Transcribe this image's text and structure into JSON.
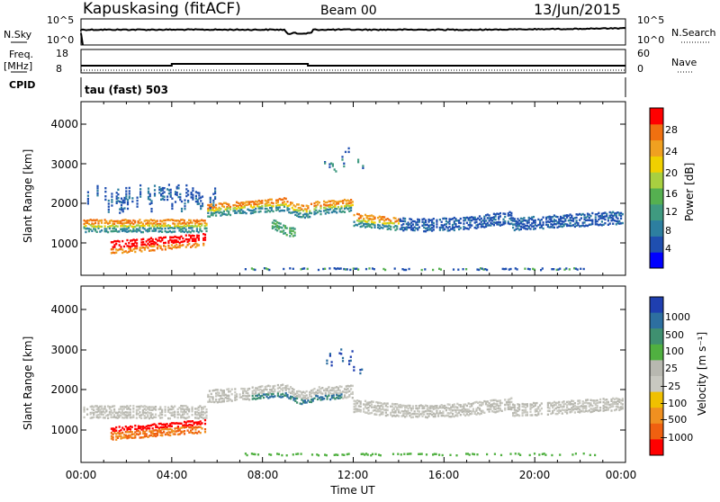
{
  "header": {
    "station": "Kapuskasing (fitACF)",
    "beam": "Beam 00",
    "date": "13/Jun/2015"
  },
  "noise_panel": {
    "left_label": "N.Sky",
    "right_label": "N.Search",
    "left_ticks": [
      "10^5",
      "10^0"
    ],
    "right_ticks": [
      "10^5",
      "10^0"
    ]
  },
  "freq_panel": {
    "left_label_1": "Freq.",
    "left_label_2": "[MHz]",
    "right_label": "Nave",
    "left_ticks": [
      "18",
      "8"
    ],
    "right_ticks": [
      "60",
      "0"
    ]
  },
  "cpid": {
    "label": "CPID",
    "text": "tau (fast) 503"
  },
  "colors": {
    "power": [
      "#0000ff",
      "#1f4fb0",
      "#2d7fa0",
      "#3f9a80",
      "#55b050",
      "#a8d040",
      "#f0d000",
      "#f0a020",
      "#f07010",
      "#ff0000"
    ],
    "velocity": [
      "#1f3fb0",
      "#2d6fa0",
      "#3f9070",
      "#50b040",
      "#b8b8b0",
      "#c8c8c0",
      "#f0c000",
      "#f09020",
      "#f06010",
      "#ff0000"
    ]
  },
  "chart_data": [
    {
      "type": "heatmap",
      "title": "Power",
      "xlabel": "Time UT",
      "ylabel": "Slant Range [km]",
      "x_ticks": [
        "00:00",
        "04:00",
        "08:00",
        "12:00",
        "16:00",
        "20:00",
        "00:00"
      ],
      "xlim": [
        "00:00",
        "24:00"
      ],
      "ylim": [
        180,
        4600
      ],
      "y_ticks": [
        1000,
        2000,
        3000,
        4000
      ],
      "colorbar": {
        "label": "Power [dB]",
        "ticks": [
          "4",
          "8",
          "12",
          "16",
          "20",
          "24",
          "28"
        ],
        "range": [
          0,
          30
        ]
      }
    },
    {
      "type": "heatmap",
      "title": "Velocity",
      "xlabel": "Time UT",
      "ylabel": "Slant Range [km]",
      "x_ticks": [
        "00:00",
        "04:00",
        "08:00",
        "12:00",
        "16:00",
        "20:00",
        "00:00"
      ],
      "xlim": [
        "00:00",
        "24:00"
      ],
      "ylim": [
        180,
        4600
      ],
      "y_ticks": [
        1000,
        2000,
        3000,
        4000
      ],
      "colorbar": {
        "label": "Velocity [m s⁻¹]",
        "ticks": [
          "1000",
          "500",
          "100",
          "25",
          "−25",
          "−100",
          "−500",
          "−1000"
        ]
      }
    }
  ]
}
